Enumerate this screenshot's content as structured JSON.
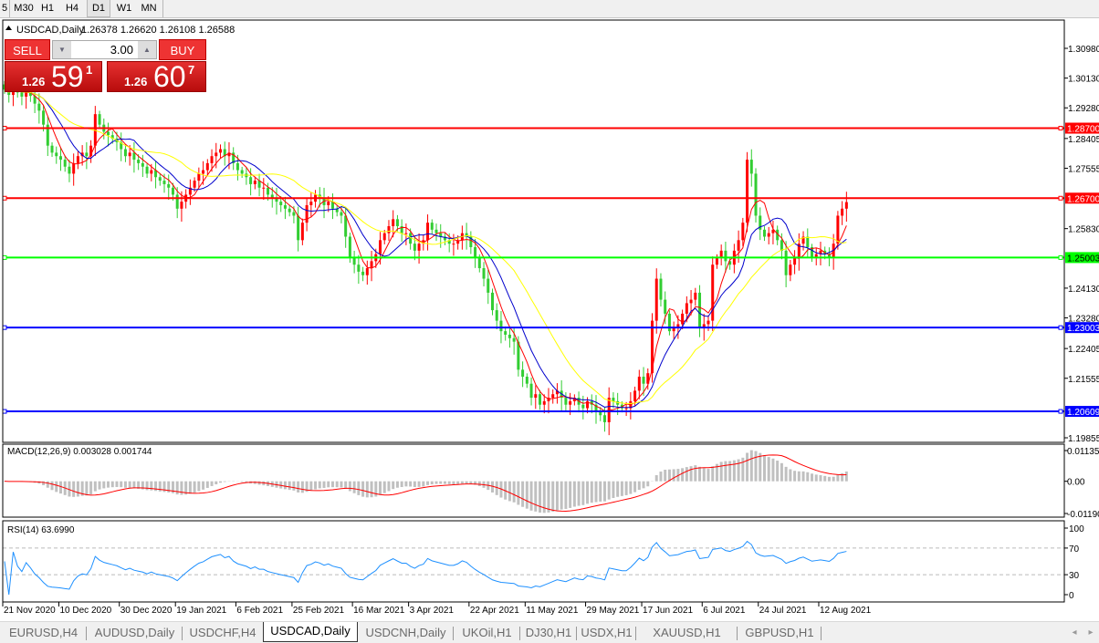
{
  "toolbar": {
    "timeframes": [
      "5",
      "M30",
      "H1",
      "H4",
      "D1",
      "W1",
      "MN"
    ],
    "active": "D1"
  },
  "chart_title": {
    "symbol": "USDCAD,Daily",
    "ohlc": "1.26378 1.26620 1.26108 1.26588"
  },
  "one_click": {
    "sell_label": "SELL",
    "buy_label": "BUY",
    "lot": "3.00",
    "sell_prefix": "1.26",
    "sell_big": "59",
    "sell_sup": "1",
    "buy_prefix": "1.26",
    "buy_big": "60",
    "buy_sup": "7"
  },
  "colors": {
    "bull": "#ff0000",
    "bear": "#32cd32",
    "ma_fast": "#ff0000",
    "ma_mid": "#0000cc",
    "ma_slow": "#ffff00",
    "macd_hist": "#c0c0c0",
    "macd_signal": "#ff0000",
    "rsi": "#1e90ff"
  },
  "chart_data": {
    "type": "candlestick",
    "ylim": [
      1.19855,
      1.3098
    ],
    "price_ticks": [
      "1.30980",
      "1.30130",
      "1.29280",
      "1.28405",
      "1.27555",
      "1.25830",
      "1.24130",
      "1.23280",
      "1.22405",
      "1.21555",
      "1.19855"
    ],
    "levels": [
      {
        "price": 1.287,
        "label": "1.28700",
        "color": "#ff0000"
      },
      {
        "price": 1.267,
        "label": "1.26700",
        "color": "#ff0000"
      },
      {
        "price": 1.25003,
        "label": "1.25003",
        "color": "#00ff00"
      },
      {
        "price": 1.23003,
        "label": "1.23003",
        "color": "#0000ff"
      },
      {
        "price": 1.20609,
        "label": "1.20609",
        "color": "#0000ff"
      }
    ],
    "date_ticks": [
      {
        "i": 0,
        "label": "21 Nov 2020"
      },
      {
        "i": 13,
        "label": "10 Dec 2020"
      },
      {
        "i": 27,
        "label": "30 Dec 2020"
      },
      {
        "i": 40,
        "label": "19 Jan 2021"
      },
      {
        "i": 54,
        "label": "6 Feb 2021"
      },
      {
        "i": 67,
        "label": "25 Feb 2021"
      },
      {
        "i": 81,
        "label": "16 Mar 2021"
      },
      {
        "i": 94,
        "label": "3 Apr 2021"
      },
      {
        "i": 108,
        "label": "22 Apr 2021"
      },
      {
        "i": 121,
        "label": "11 May 2021"
      },
      {
        "i": 135,
        "label": "29 May 2021"
      },
      {
        "i": 148,
        "label": "17 Jun 2021"
      },
      {
        "i": 162,
        "label": "6 Jul 2021"
      },
      {
        "i": 175,
        "label": "24 Jul 2021"
      },
      {
        "i": 189,
        "label": "12 Aug 2021"
      }
    ],
    "closes": [
      1.298,
      1.2965,
      1.299,
      1.2972,
      1.296,
      1.2975,
      1.2962,
      1.294,
      1.292,
      1.288,
      1.282,
      1.28,
      1.279,
      1.278,
      1.276,
      1.274,
      1.277,
      1.279,
      1.28,
      1.279,
      1.282,
      1.291,
      1.288,
      1.286,
      1.285,
      1.284,
      1.283,
      1.281,
      1.279,
      1.28,
      1.278,
      1.277,
      1.276,
      1.274,
      1.275,
      1.273,
      1.272,
      1.271,
      1.27,
      1.268,
      1.264,
      1.266,
      1.268,
      1.27,
      1.272,
      1.274,
      1.275,
      1.277,
      1.279,
      1.28,
      1.281,
      1.279,
      1.28,
      1.277,
      1.275,
      1.274,
      1.273,
      1.271,
      1.272,
      1.27,
      1.27,
      1.268,
      1.267,
      1.266,
      1.265,
      1.264,
      1.263,
      1.262,
      1.255,
      1.26,
      1.265,
      1.266,
      1.268,
      1.267,
      1.265,
      1.266,
      1.264,
      1.263,
      1.262,
      1.256,
      1.25,
      1.248,
      1.246,
      1.245,
      1.247,
      1.249,
      1.251,
      1.255,
      1.257,
      1.259,
      1.261,
      1.259,
      1.257,
      1.257,
      1.254,
      1.252,
      1.254,
      1.255,
      1.26,
      1.258,
      1.257,
      1.256,
      1.255,
      1.254,
      1.254,
      1.255,
      1.257,
      1.256,
      1.253,
      1.25,
      1.247,
      1.244,
      1.24,
      1.235,
      1.232,
      1.229,
      1.228,
      1.227,
      1.226,
      1.218,
      1.216,
      1.214,
      1.21,
      1.211,
      1.208,
      1.209,
      1.21,
      1.211,
      1.212,
      1.21,
      1.208,
      1.209,
      1.21,
      1.208,
      1.207,
      1.209,
      1.208,
      1.206,
      1.205,
      1.203,
      1.21,
      1.209,
      1.208,
      1.207,
      1.207,
      1.209,
      1.212,
      1.216,
      1.214,
      1.217,
      1.232,
      1.244,
      1.238,
      1.234,
      1.229,
      1.23,
      1.231,
      1.234,
      1.237,
      1.238,
      1.24,
      1.23,
      1.231,
      1.232,
      1.248,
      1.25,
      1.252,
      1.249,
      1.248,
      1.252,
      1.255,
      1.26,
      1.278,
      1.274,
      1.262,
      1.258,
      1.256,
      1.257,
      1.258,
      1.255,
      1.252,
      1.245,
      1.248,
      1.25,
      1.254,
      1.256,
      1.253,
      1.25,
      1.251,
      1.252,
      1.251,
      1.25,
      1.254,
      1.262,
      1.264,
      1.26588
    ],
    "macd": {
      "label": "MACD(12,26,9) 0.003028 0.001744",
      "ylim": [
        -0.0119,
        0.01135
      ],
      "ticks": [
        "0.01135",
        "0.00",
        "-0.01190"
      ]
    },
    "rsi": {
      "label": "RSI(14) 63.6990",
      "ylim": [
        0,
        100
      ],
      "ticks": [
        "100",
        "70",
        "30",
        "0"
      ],
      "levels": [
        70,
        30
      ]
    }
  },
  "tabs": [
    {
      "label": "EURUSD,H4"
    },
    {
      "label": "AUDUSD,Daily"
    },
    {
      "label": "USDCHF,H4"
    },
    {
      "label": "USDCAD,Daily",
      "active": true
    },
    {
      "label": "USDCNH,Daily"
    },
    {
      "label": "UKOil,H1"
    },
    {
      "label": "DJ30,H1"
    },
    {
      "label": "USDX,H1"
    },
    {
      "label": "XAUUSD,H1"
    },
    {
      "label": "GBPUSD,H1"
    }
  ]
}
